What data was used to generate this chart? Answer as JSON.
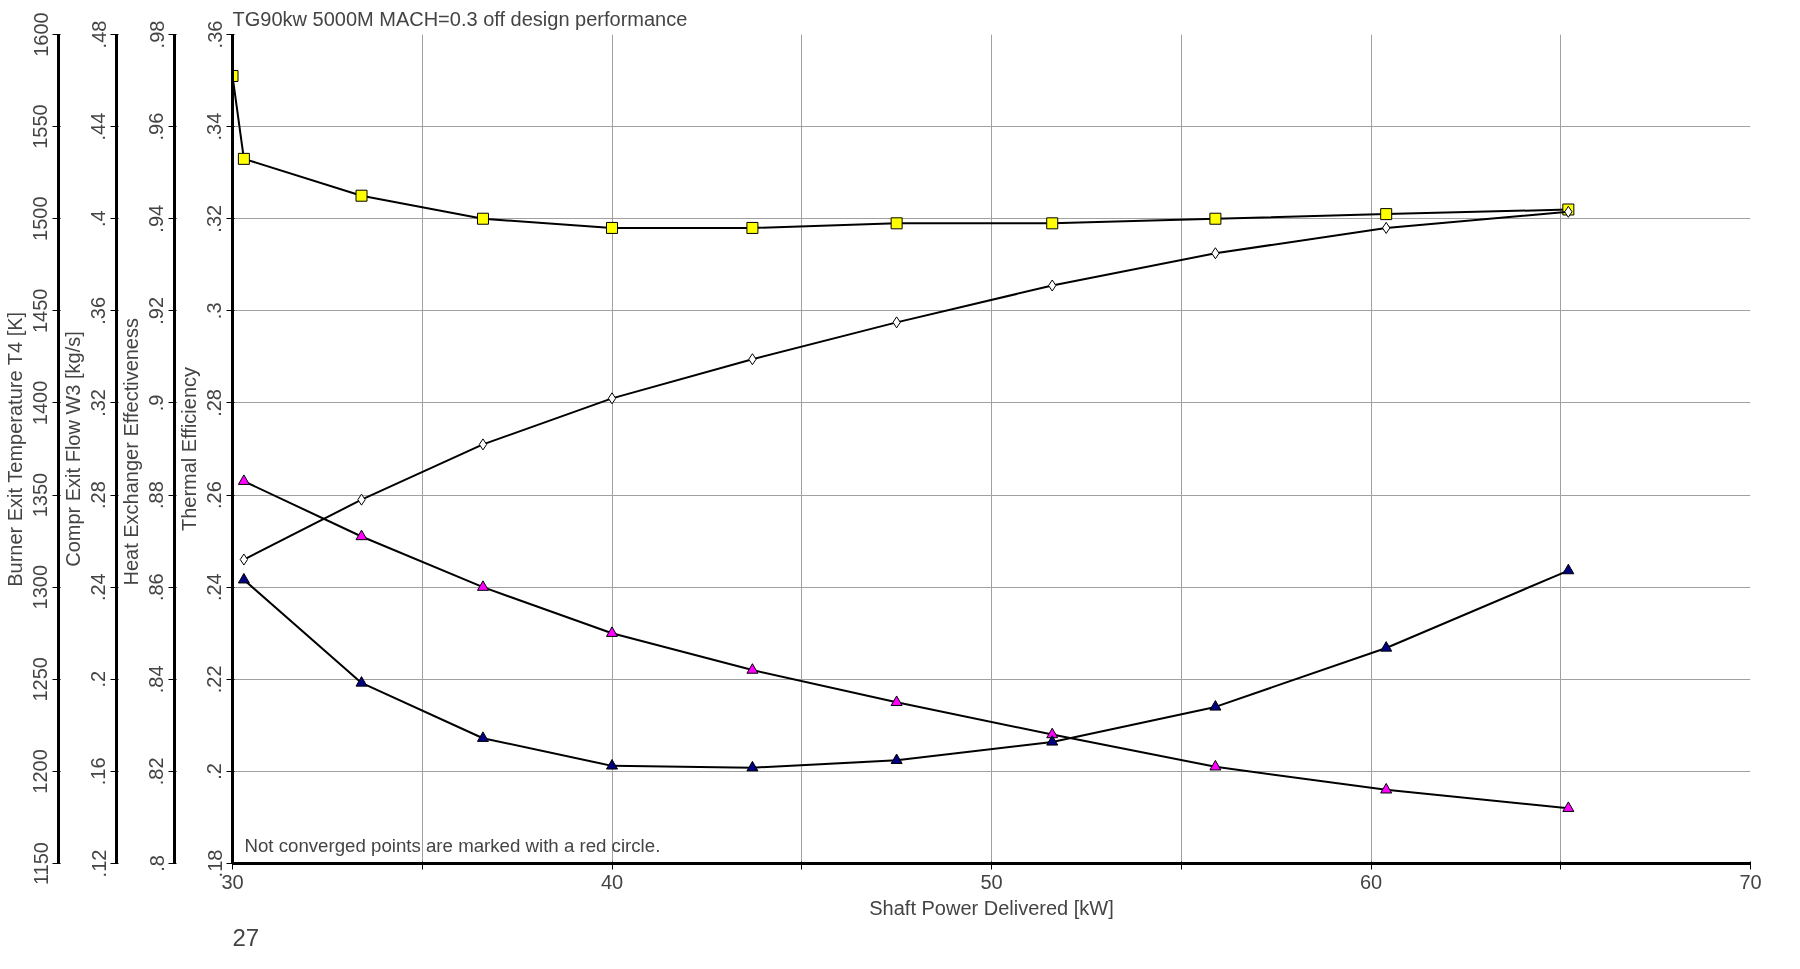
{
  "chart_data": [
    {
      "type": "line",
      "title": "TG90kw  5000M MACH=0.3  off  design performance",
      "xlabel": "Shaft Power Delivered [kW]",
      "ylabel": "Thermal Efficiency",
      "y2label": "Heat Exchanger  Effectiveness",
      "y3label": "Compr Exit Flow W3 [kg/s]",
      "xlim": [
        30,
        70
      ],
      "xticks": [
        30,
        {
          "value": 35,
          "label": null
        },
        40,
        {
          "value": 45,
          "label": null
        },
        50,
        {
          "value": 55,
          "label": null
        },
        60,
        {
          "value": 65,
          "label": null
        },
        70
      ],
      "ylim": [
        0.18,
        0.36
      ],
      "yticks": [
        {
          "value": 0.18,
          "label": ".18"
        },
        {
          "value": 0.2,
          "label": ".2"
        },
        {
          "value": 0.22,
          "label": ".22"
        },
        {
          "value": 0.24,
          "label": ".24"
        },
        {
          "value": 0.26,
          "label": ".26"
        },
        {
          "value": 0.28,
          "label": ".28"
        },
        {
          "value": 0.3,
          "label": ".3"
        },
        {
          "value": 0.32,
          "label": ".32"
        },
        {
          "value": 0.34,
          "label": ".34"
        },
        {
          "value": 0.36,
          "label": ".36"
        }
      ],
      "y2lim": [
        0.8,
        0.98
      ],
      "y2ticks": [
        {
          "value": 0.8,
          "label": ".8"
        },
        {
          "value": 0.82,
          "label": ".82"
        },
        {
          "value": 0.84,
          "label": ".84"
        },
        {
          "value": 0.86,
          "label": ".86"
        },
        {
          "value": 0.88,
          "label": ".88"
        },
        {
          "value": 0.9,
          "label": ".9"
        },
        {
          "value": 0.92,
          "label": ".92"
        },
        {
          "value": 0.94,
          "label": ".94"
        },
        {
          "value": 0.96,
          "label": ".96"
        },
        {
          "value": 0.98,
          "label": ".98"
        }
      ],
      "y3lim": [
        0.12,
        0.48
      ],
      "y3ticks": [
        {
          "value": 0.12,
          "label": ".12"
        },
        {
          "value": 0.16,
          "label": ".16"
        },
        {
          "value": 0.2,
          "label": ".2"
        },
        {
          "value": 0.24,
          "label": ".24"
        },
        {
          "value": 0.28,
          "label": ".28"
        },
        {
          "value": 0.32,
          "label": ".32"
        },
        {
          "value": 0.36,
          "label": ".36"
        },
        {
          "value": 0.4,
          "label": ".4"
        },
        {
          "value": 0.44,
          "label": ".44"
        },
        {
          "value": 0.48,
          "label": ".48"
        }
      ],
      "grid": true,
      "line_style": "solid",
      "annotations": [
        "Not converged points are marked with a red circle.",
        "27"
      ],
      "series": [
        {
          "color": "#ffff00",
          "marker": "square",
          "x": [
            30.0,
            30.3,
            33.4,
            36.6,
            40.0,
            43.7,
            47.5,
            51.6,
            55.9,
            60.4,
            65.2
          ],
          "values": [
            0.351,
            0.333,
            0.325,
            0.32,
            0.318,
            0.318,
            0.319,
            0.319,
            0.32,
            0.321,
            0.322
          ]
        },
        {
          "color": "#ffffff",
          "marker": "diamond",
          "axis": "y3",
          "x": [
            30.3,
            33.4,
            36.6,
            40.0,
            43.7,
            47.5,
            51.6,
            55.9,
            60.4,
            65.2
          ],
          "values": [
            0.252,
            0.278,
            0.302,
            0.322,
            0.339,
            0.355,
            0.371,
            0.385,
            0.396,
            0.403
          ]
        },
        {
          "color": "#ff00ff",
          "marker": "triangle",
          "axis": "y2",
          "x": [
            30.3,
            33.4,
            36.6,
            40.0,
            43.7,
            47.5,
            51.6,
            55.9,
            60.4,
            65.2
          ],
          "values": [
            0.883,
            0.871,
            0.86,
            0.85,
            0.842,
            0.835,
            0.828,
            0.821,
            0.816,
            0.812
          ]
        }
      ]
    },
    {
      "type": "line",
      "ylabel": "Burner Exit Temperature T4 [K]",
      "xlim": [
        30,
        70
      ],
      "tick_labels": "y",
      "ylim": [
        1150,
        1600
      ],
      "yticks": [
        1150,
        1200,
        1250,
        1300,
        1350,
        1400,
        1450,
        1500,
        1550,
        1600
      ],
      "line_style": "solid",
      "series": [
        {
          "color": "#000080",
          "marker": "triangle",
          "x": [
            30.3,
            33.4,
            36.6,
            40.0,
            43.7,
            47.5,
            51.6,
            55.9,
            60.4,
            65.2
          ],
          "values": [
            1304,
            1248,
            1218,
            1203,
            1202,
            1206,
            1216,
            1235,
            1267,
            1309
          ]
        }
      ]
    }
  ]
}
